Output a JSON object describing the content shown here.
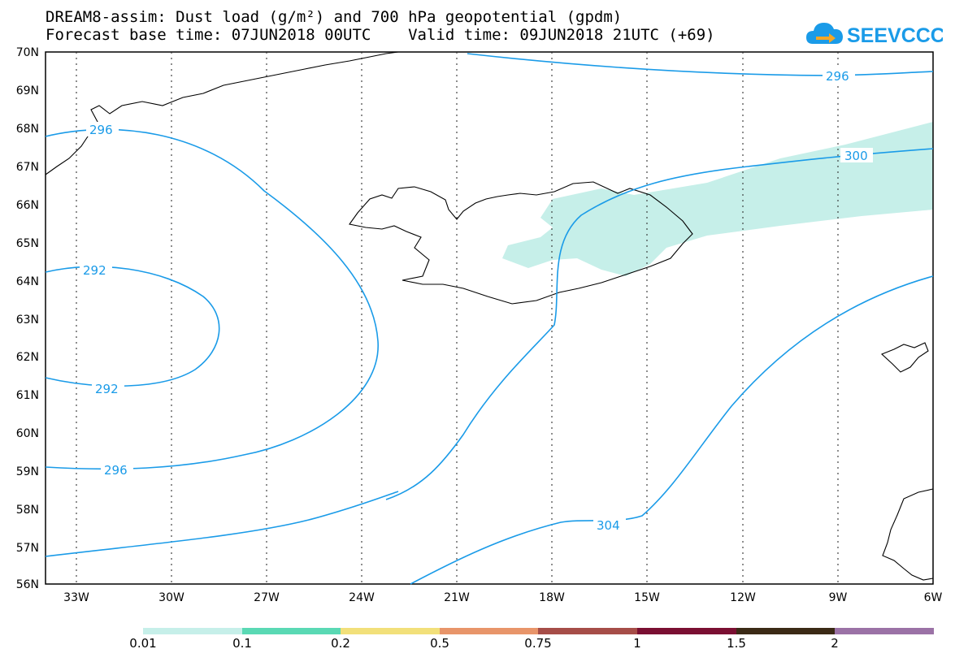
{
  "header": {
    "title_line1": "DREAM8-assim: Dust load (g/m²) and 700 hPa geopotential (gpdm)",
    "title_line2": "Forecast base time: 07JUN2018 00UTC    Valid time: 09JUN2018 21UTC (+69)"
  },
  "logo": {
    "text": "SEEVCCC",
    "color": "#1a9be8",
    "icon": "cloud-arrow-icon"
  },
  "map": {
    "lat_labels": [
      "70N",
      "69N",
      "68N",
      "67N",
      "66N",
      "65N",
      "64N",
      "63N",
      "62N",
      "61N",
      "60N",
      "59N",
      "58N",
      "57N",
      "56N"
    ],
    "lon_labels": [
      "33W",
      "30W",
      "27W",
      "24W",
      "21W",
      "18W",
      "15W",
      "12W",
      "9W",
      "6W"
    ],
    "contour_labels": [
      "296",
      "296",
      "300",
      "292",
      "292",
      "296",
      "304"
    ],
    "contour_color": "#1a9be8",
    "dust_color": "#c6efe9"
  },
  "colorbar": {
    "labels": [
      "0.01",
      "0.1",
      "0.2",
      "0.5",
      "0.75",
      "1",
      "1.5",
      "2"
    ],
    "colors": [
      "#c6efe9",
      "#5ad9b4",
      "#f2e07a",
      "#e8956a",
      "#a64d48",
      "#7a0f32",
      "#3b2a16",
      "#9b72a6"
    ]
  }
}
